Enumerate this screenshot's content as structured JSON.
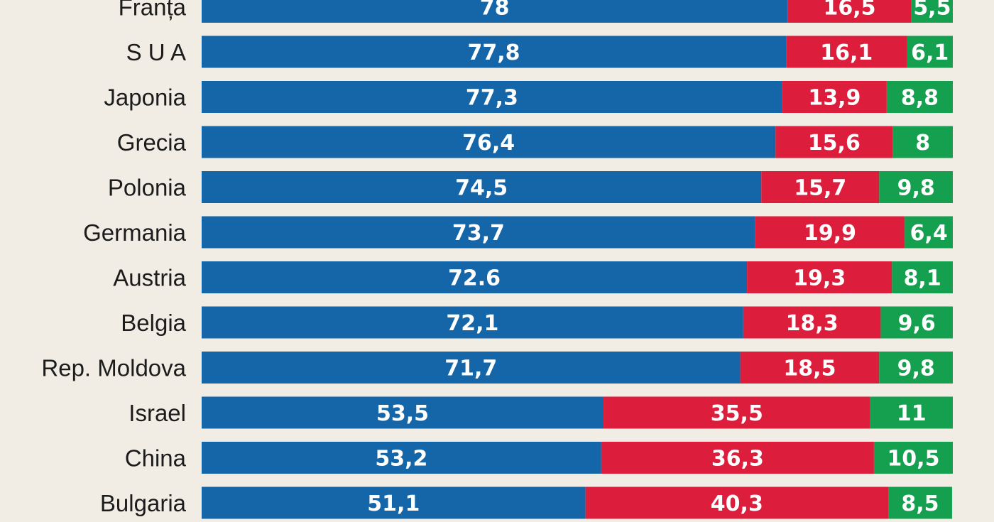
{
  "chart_data": {
    "type": "bar",
    "orientation": "horizontal",
    "stacked": true,
    "categories": [
      "Franța",
      "S U A",
      "Japonia",
      "Grecia",
      "Polonia",
      "Germania",
      "Austria",
      "Belgia",
      "Rep. Moldova",
      "Israel",
      "China",
      "Bulgaria"
    ],
    "series": [
      {
        "color": "#1566a8",
        "values": [
          78,
          77.8,
          77.3,
          76.4,
          74.5,
          73.7,
          72.6,
          72.1,
          71.7,
          53.5,
          53.2,
          51.1
        ],
        "labels": [
          "78",
          "77,8",
          "77,3",
          "76,4",
          "74,5",
          "73,7",
          "72.6",
          "72,1",
          "71,7",
          "53,5",
          "53,2",
          "51,1"
        ]
      },
      {
        "color": "#dc1e3c",
        "values": [
          16.5,
          16.1,
          13.9,
          15.6,
          15.7,
          19.9,
          19.3,
          18.3,
          18.5,
          35.5,
          36.3,
          40.3
        ],
        "labels": [
          "16,5",
          "16,1",
          "13,9",
          "15,6",
          "15,7",
          "19,9",
          "19,3",
          "18,3",
          "18,5",
          "35,5",
          "36,3",
          "40,3"
        ]
      },
      {
        "color": "#14a04e",
        "values": [
          5.5,
          6.1,
          8.8,
          8,
          9.8,
          6.4,
          8.1,
          9.6,
          9.8,
          11,
          10.5,
          8.5
        ],
        "labels": [
          "5,5",
          "6,1",
          "8,8",
          "8",
          "9,8",
          "6,4",
          "8,1",
          "9,6",
          "9,8",
          "11",
          "10,5",
          "8,5"
        ]
      }
    ],
    "xlim": [
      0,
      100
    ]
  }
}
